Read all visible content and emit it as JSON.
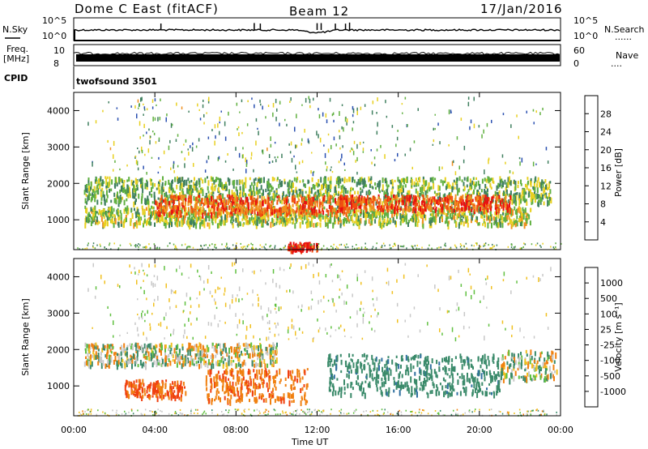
{
  "header": {
    "station": "Dome C East (fitACF)",
    "beam": "Beam 12",
    "date": "17/Jan/2016"
  },
  "sky_panel": {
    "left_label": "N.Sky",
    "right_label": "N.Search",
    "right_label_dots": "......",
    "left_ticks": [
      "10^5",
      "10^0"
    ],
    "right_ticks": [
      "10^5",
      "10^0"
    ]
  },
  "freq_panel": {
    "left_label_line1": "Freq.",
    "left_label_line2": "[MHz]",
    "left_ticks": [
      "10",
      "8"
    ],
    "right_label": "Nave",
    "right_label_dots": "....",
    "right_ticks": [
      "60",
      "0"
    ]
  },
  "cpid_panel": {
    "label": "CPID",
    "program": "twofsound 3501"
  },
  "axes": {
    "ylabel": "Slant Range [km]",
    "xlabel": "Time UT",
    "y_ticks": [
      "1000",
      "2000",
      "3000",
      "4000"
    ],
    "x_ticks": [
      "00:00",
      "04:00",
      "08:00",
      "12:00",
      "16:00",
      "20:00",
      "00:00"
    ]
  },
  "colorbar_power": {
    "label": "Power [dB]",
    "ticks": [
      "4",
      "8",
      "12",
      "16",
      "20",
      "24",
      "28"
    ],
    "colors": [
      "#1a1aff",
      "#2a4fb0",
      "#3f7f5f",
      "#60b040",
      "#e8d020",
      "#f09020",
      "#f05010",
      "#e81010"
    ]
  },
  "colorbar_velocity": {
    "label": "Velocity [m s⁻¹]",
    "ticks": [
      "1000",
      "500",
      "100",
      "25",
      "-25",
      "-100",
      "-500",
      "-1000"
    ],
    "colors": [
      "#2040c0",
      "#2f6f9f",
      "#3a8a6a",
      "#60c040",
      "#c8c8c8",
      "#f0c020",
      "#f08010",
      "#f04010",
      "#e81010"
    ]
  },
  "chart_data": [
    {
      "type": "heatmap",
      "title": "Power",
      "x_range": [
        "00:00",
        "24:00"
      ],
      "ylim": [
        180,
        4500
      ],
      "colorbar_range": [
        0,
        30
      ],
      "scatter_bands": [
        {
          "t_start": 0.5,
          "t_end": 23.5,
          "range_low": 1500,
          "range_high": 2200,
          "power": 13
        },
        {
          "t_start": 0.5,
          "t_end": 22.5,
          "range_low": 900,
          "range_high": 1400,
          "power": 15
        },
        {
          "t_start": 4.0,
          "t_end": 13.5,
          "range_low": 1200,
          "range_high": 1700,
          "power": 24
        },
        {
          "t_start": 13.0,
          "t_end": 21.5,
          "range_low": 1300,
          "range_high": 1700,
          "power": 25
        },
        {
          "t_start": 10.5,
          "t_end": 12.0,
          "range_low": 200,
          "range_high": 400,
          "power": 29
        }
      ]
    },
    {
      "type": "heatmap",
      "title": "Velocity",
      "x_range": [
        "00:00",
        "24:00"
      ],
      "ylim": [
        180,
        4500
      ],
      "colorbar_range": [
        -1000,
        1000
      ],
      "scatter_bands": [
        {
          "t_start": 0.5,
          "t_end": 10.0,
          "range_low": 1600,
          "range_high": 2200,
          "velocity": 0
        },
        {
          "t_start": 2.5,
          "t_end": 5.5,
          "range_low": 700,
          "range_high": 1200,
          "velocity": -300
        },
        {
          "t_start": 6.5,
          "t_end": 11.5,
          "range_low": 600,
          "range_high": 1500,
          "velocity": -250
        },
        {
          "t_start": 12.5,
          "t_end": 21.0,
          "range_low": 800,
          "range_high": 1900,
          "velocity": 200
        },
        {
          "t_start": 21.0,
          "t_end": 23.8,
          "range_low": 1200,
          "range_high": 2000,
          "velocity": 0
        }
      ]
    }
  ]
}
